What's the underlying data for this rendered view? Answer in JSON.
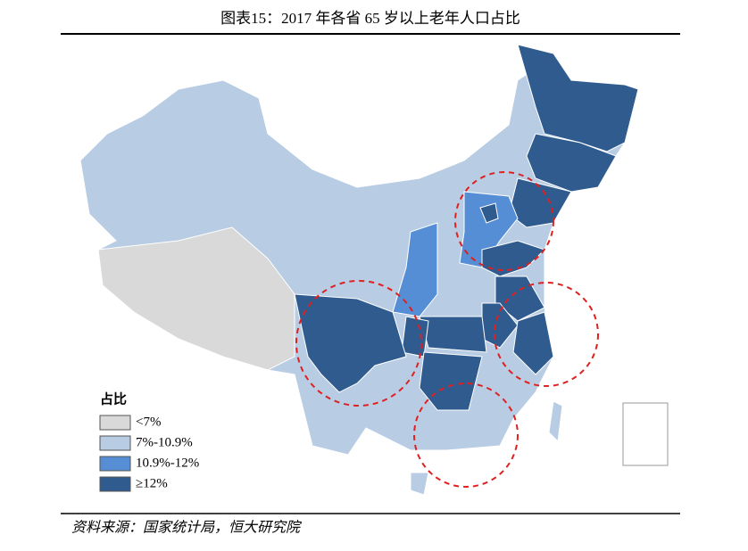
{
  "title": "图表15：2017 年各省 65 岁以上老年人口占比",
  "legend": {
    "title": "占比",
    "items": [
      {
        "label": "<7%",
        "color": "#d9d9d9"
      },
      {
        "label": "7%-10.9%",
        "color": "#b8cce4"
      },
      {
        "label": "10.9%-12%",
        "color": "#558ed5"
      },
      {
        "label": "≥12%",
        "color": "#2f5b8f"
      }
    ]
  },
  "source": "资料来源：国家统计局，恒大研究院"
}
